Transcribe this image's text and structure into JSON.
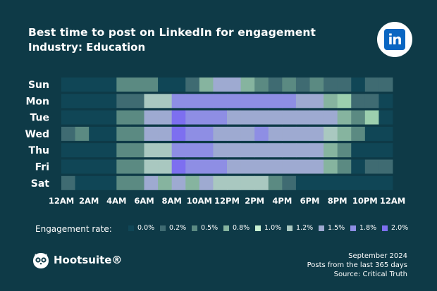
{
  "header": {
    "title": "Best time to post on LinkedIn for engagement",
    "subtitle": "Industry: Education",
    "logo_text": "in"
  },
  "colors": {
    "background": "#0e3a47",
    "scale": [
      "#104656",
      "#215a68",
      "#3f6b72",
      "#5b8a82",
      "#86b49f",
      "#a9c8c0",
      "#9eaad1",
      "#8e8ee4",
      "#7d6ff0"
    ]
  },
  "chart_data": {
    "type": "heatmap",
    "title": "Best time to post on LinkedIn for engagement",
    "subtitle": "Industry: Education",
    "y_categories": [
      "Sun",
      "Mon",
      "Tue",
      "Wed",
      "Thu",
      "Fri",
      "Sat"
    ],
    "x_tick_labels": [
      "12AM",
      "2AM",
      "4AM",
      "6AM",
      "8AM",
      "10AM",
      "12PM",
      "2PM",
      "4PM",
      "6PM",
      "8PM",
      "10PM",
      "12AM"
    ],
    "hours": 24,
    "value_unit": "engagement rate (%)",
    "values": [
      [
        0.0,
        0.0,
        0.0,
        0.0,
        0.5,
        0.5,
        0.5,
        0.0,
        0.0,
        0.2,
        0.8,
        1.5,
        1.5,
        0.8,
        0.5,
        0.2,
        0.5,
        0.2,
        0.5,
        0.2,
        0.2,
        0.0,
        0.2,
        0.2
      ],
      [
        0.0,
        0.0,
        0.0,
        0.0,
        0.2,
        0.2,
        1.2,
        1.2,
        1.8,
        1.8,
        1.8,
        1.8,
        1.8,
        1.8,
        1.8,
        1.8,
        1.8,
        1.5,
        1.5,
        0.8,
        1.0,
        0.2,
        0.2,
        0.0
      ],
      [
        0.0,
        0.0,
        0.0,
        0.0,
        0.5,
        0.5,
        1.5,
        1.5,
        2.0,
        1.8,
        1.8,
        1.8,
        1.5,
        1.5,
        1.5,
        1.5,
        1.5,
        1.5,
        1.5,
        1.5,
        0.8,
        0.5,
        1.0,
        0.0
      ],
      [
        0.2,
        0.5,
        0.0,
        0.0,
        0.5,
        0.5,
        1.5,
        1.5,
        2.0,
        1.8,
        1.8,
        1.5,
        1.5,
        1.5,
        1.8,
        1.5,
        1.5,
        1.5,
        1.5,
        1.2,
        0.8,
        0.5,
        0.0,
        0.0
      ],
      [
        0.0,
        0.0,
        0.0,
        0.0,
        0.5,
        0.5,
        1.2,
        1.2,
        1.8,
        1.8,
        1.8,
        1.5,
        1.5,
        1.5,
        1.5,
        1.5,
        1.5,
        1.5,
        1.5,
        0.8,
        0.5,
        0.0,
        0.0,
        0.0
      ],
      [
        0.0,
        0.0,
        0.0,
        0.0,
        0.5,
        0.5,
        1.2,
        1.2,
        2.0,
        1.8,
        1.8,
        1.8,
        1.5,
        1.5,
        1.5,
        1.5,
        1.5,
        1.5,
        1.5,
        0.8,
        0.5,
        0.0,
        0.2,
        0.2
      ],
      [
        0.2,
        0.0,
        0.0,
        0.0,
        0.5,
        0.5,
        1.5,
        0.8,
        1.5,
        0.8,
        1.5,
        1.2,
        1.2,
        1.2,
        1.2,
        0.5,
        0.2,
        0.0,
        0.0,
        0.0,
        0.0,
        0.0,
        0.0,
        0.0
      ]
    ]
  },
  "legend": {
    "label": "Engagement rate:",
    "items": [
      {
        "label": "0.0%",
        "color": "#104656"
      },
      {
        "label": "0.2%",
        "color": "#3f6b72"
      },
      {
        "label": "0.5%",
        "color": "#5b8a82"
      },
      {
        "label": "0.8%",
        "color": "#86b49f"
      },
      {
        "label": "1.0%",
        "color": "#c8f0d2"
      },
      {
        "label": "1.2%",
        "color": "#a9c8c0"
      },
      {
        "label": "1.5%",
        "color": "#9eaad1"
      },
      {
        "label": "1.8%",
        "color": "#8e8ee4"
      },
      {
        "label": "2.0%",
        "color": "#7d6ff0"
      }
    ]
  },
  "brand": {
    "name": "Hootsuite®"
  },
  "footer": {
    "date": "September 2024",
    "period": "Posts from the last 365 days",
    "source": "Source: Critical Truth"
  }
}
